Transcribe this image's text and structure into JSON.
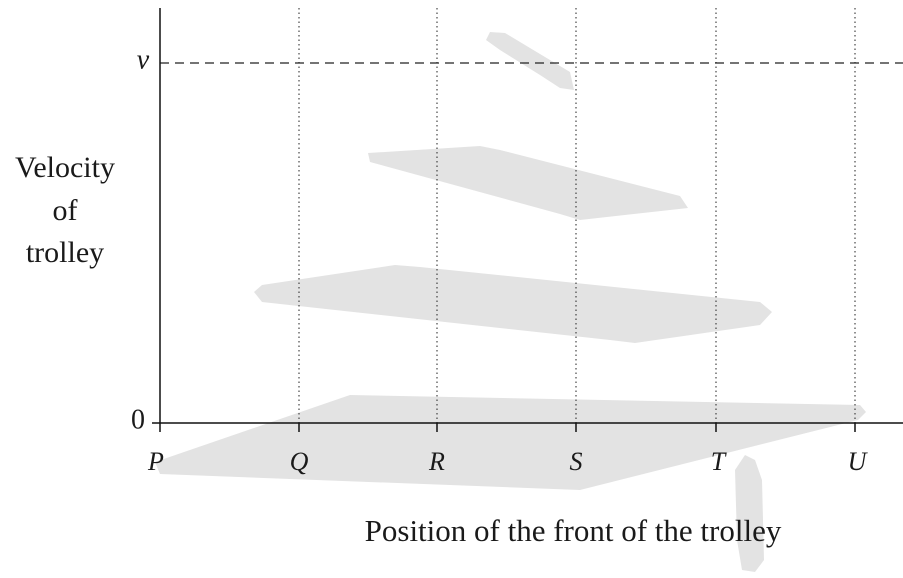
{
  "diagram": {
    "y_axis": {
      "title_lines": [
        "Velocity",
        "of",
        "trolley"
      ],
      "labels": [
        "v",
        "0"
      ]
    },
    "x_axis": {
      "title": "Position of the front of the trolley",
      "labels": [
        "P",
        "Q",
        "R",
        "S",
        "T",
        "U"
      ]
    }
  }
}
